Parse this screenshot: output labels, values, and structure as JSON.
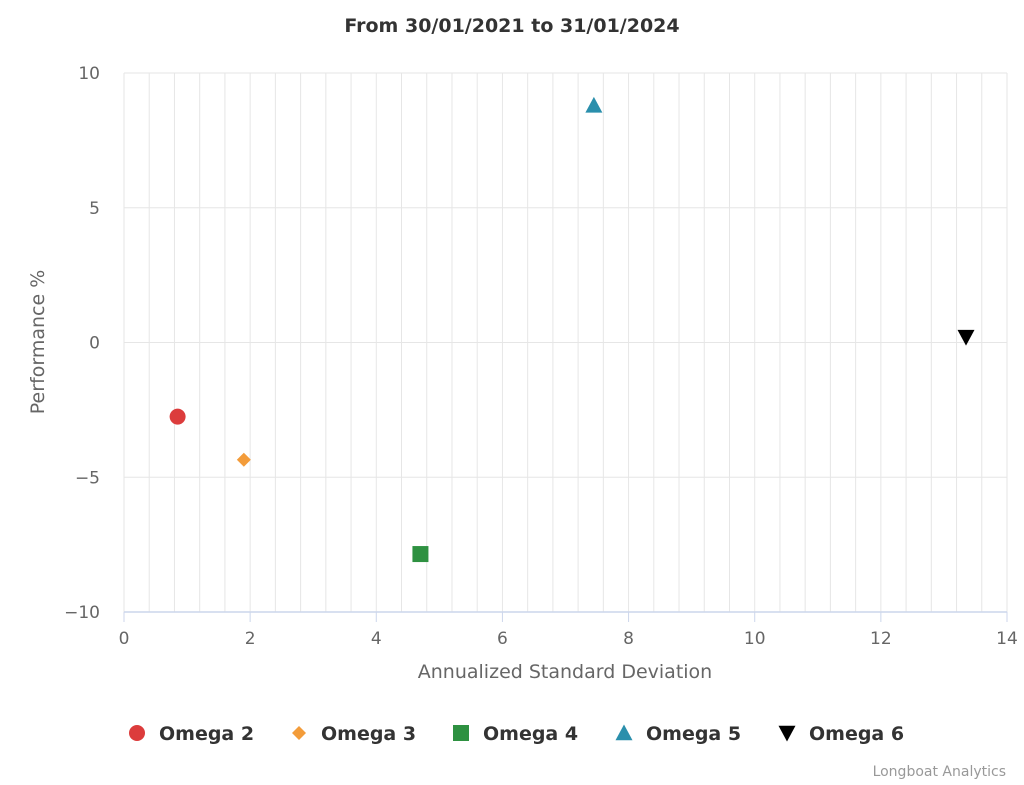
{
  "chart_data": {
    "type": "scatter",
    "title": "From 30/01/2021 to 31/01/2024",
    "xlabel": "Annualized Standard Deviation",
    "ylabel": "Performance %",
    "xlim": [
      0,
      14
    ],
    "ylim": [
      -10,
      10
    ],
    "x_ticks": [
      0,
      2,
      4,
      6,
      8,
      10,
      12,
      14
    ],
    "x_tick_labels": [
      "0",
      "2",
      "4",
      "6",
      "8",
      "10",
      "12",
      "14"
    ],
    "y_ticks": [
      -10,
      -5,
      0,
      5,
      10
    ],
    "y_tick_labels": [
      "−10",
      "−5",
      "0",
      "5",
      "10"
    ],
    "x_minor_step": 0.4,
    "grid": true,
    "legend_position": "bottom-center",
    "series": [
      {
        "name": "Omega 2",
        "marker": "circle",
        "color": "#dc3c3c",
        "points": [
          {
            "x": 0.85,
            "y": -2.75
          }
        ]
      },
      {
        "name": "Omega 3",
        "marker": "diamond",
        "color": "#f39c3a",
        "points": [
          {
            "x": 1.9,
            "y": -4.35
          }
        ]
      },
      {
        "name": "Omega 4",
        "marker": "square",
        "color": "#2e9141",
        "points": [
          {
            "x": 4.7,
            "y": -7.85
          }
        ]
      },
      {
        "name": "Omega 5",
        "marker": "triangle",
        "color": "#2a8fac",
        "points": [
          {
            "x": 7.45,
            "y": 8.8
          }
        ]
      },
      {
        "name": "Omega 6",
        "marker": "triangle-down",
        "color": "#000000",
        "points": [
          {
            "x": 13.35,
            "y": 0.2
          }
        ]
      }
    ]
  },
  "credits": "Longboat Analytics"
}
